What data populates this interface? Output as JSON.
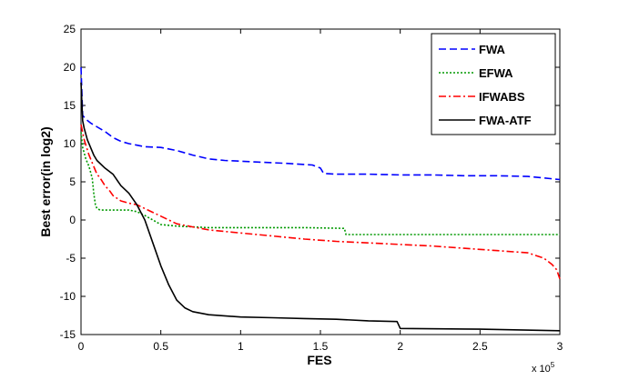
{
  "chart_data": {
    "type": "line",
    "xlabel": "FES",
    "ylabel": "Best error(in log2)",
    "x_multiplier_label": "x 10",
    "x_multiplier_exponent": "5",
    "xlim": [
      0,
      3
    ],
    "ylim": [
      -15,
      25
    ],
    "xticks": [
      0,
      0.5,
      1,
      1.5,
      2,
      2.5,
      3
    ],
    "xtick_labels": [
      "0",
      "0.5",
      "1",
      "1.5",
      "2",
      "2.5",
      "3"
    ],
    "yticks": [
      -15,
      -10,
      -5,
      0,
      5,
      10,
      15,
      20,
      25
    ],
    "ytick_labels": [
      "-15",
      "-10",
      "-5",
      "0",
      "5",
      "10",
      "15",
      "20",
      "25"
    ],
    "grid": false,
    "legend_position": "top-right",
    "series": [
      {
        "name": "FWA",
        "color": "#0000ff",
        "dash": "dashed",
        "x": [
          0,
          0.01,
          0.03,
          0.06,
          0.1,
          0.15,
          0.2,
          0.25,
          0.3,
          0.35,
          0.4,
          0.5,
          0.6,
          0.7,
          0.8,
          0.9,
          1.0,
          1.1,
          1.2,
          1.3,
          1.45,
          1.5,
          1.52,
          1.6,
          1.8,
          2.0,
          2.2,
          2.4,
          2.6,
          2.8,
          2.9,
          3.0
        ],
        "y": [
          20,
          13.7,
          13.2,
          12.7,
          12.2,
          11.6,
          10.8,
          10.3,
          10.0,
          9.8,
          9.6,
          9.5,
          9.1,
          8.5,
          8.0,
          7.8,
          7.7,
          7.6,
          7.5,
          7.4,
          7.2,
          6.8,
          6.1,
          6.0,
          6.0,
          5.9,
          5.9,
          5.8,
          5.8,
          5.7,
          5.5,
          5.3
        ]
      },
      {
        "name": "EFWA",
        "color": "#009900",
        "dash": "dotted",
        "x": [
          0,
          0.01,
          0.03,
          0.05,
          0.07,
          0.08,
          0.09,
          0.1,
          0.12,
          0.15,
          0.2,
          0.25,
          0.3,
          0.35,
          0.4,
          0.45,
          0.5,
          0.6,
          0.8,
          1.0,
          1.2,
          1.4,
          1.65,
          1.66,
          1.8,
          2.0,
          2.5,
          3.0
        ],
        "y": [
          11.5,
          9.5,
          8.0,
          7.0,
          5.5,
          3.5,
          2.0,
          1.5,
          1.3,
          1.3,
          1.3,
          1.3,
          1.3,
          1.1,
          0.6,
          0.0,
          -0.6,
          -0.8,
          -1.0,
          -1.0,
          -1.0,
          -1.0,
          -1.1,
          -1.9,
          -1.9,
          -1.9,
          -1.9,
          -1.9
        ]
      },
      {
        "name": "IFWABS",
        "color": "#ff0000",
        "dash": "dashdot",
        "x": [
          0,
          0.02,
          0.05,
          0.08,
          0.1,
          0.12,
          0.15,
          0.18,
          0.2,
          0.25,
          0.3,
          0.35,
          0.4,
          0.45,
          0.5,
          0.55,
          0.6,
          0.7,
          0.8,
          1.0,
          1.2,
          1.4,
          1.6,
          1.8,
          2.0,
          2.2,
          2.4,
          2.6,
          2.8,
          2.9,
          2.95,
          2.98,
          3.0
        ],
        "y": [
          12.5,
          10.5,
          8.5,
          7.0,
          6.0,
          5.5,
          4.5,
          3.8,
          3.2,
          2.5,
          2.2,
          2.0,
          1.5,
          1.0,
          0.5,
          0.0,
          -0.5,
          -0.9,
          -1.3,
          -1.7,
          -2.1,
          -2.5,
          -2.8,
          -3.0,
          -3.2,
          -3.4,
          -3.7,
          -4.0,
          -4.3,
          -5.0,
          -5.8,
          -6.5,
          -7.7
        ]
      },
      {
        "name": "FWA-ATF",
        "color": "#000000",
        "dash": "solid",
        "x": [
          0,
          0.01,
          0.02,
          0.04,
          0.06,
          0.08,
          0.1,
          0.15,
          0.2,
          0.25,
          0.3,
          0.35,
          0.4,
          0.45,
          0.5,
          0.55,
          0.6,
          0.65,
          0.7,
          0.8,
          1.0,
          1.2,
          1.4,
          1.6,
          1.8,
          1.98,
          2.0,
          2.5,
          3.0
        ],
        "y": [
          18.0,
          13.0,
          12.0,
          10.5,
          9.5,
          8.5,
          7.8,
          6.8,
          6.0,
          4.5,
          3.5,
          2.0,
          0.0,
          -3.0,
          -6.0,
          -8.5,
          -10.5,
          -11.5,
          -12.0,
          -12.4,
          -12.7,
          -12.8,
          -12.9,
          -13.0,
          -13.2,
          -13.3,
          -14.2,
          -14.3,
          -14.5
        ]
      }
    ]
  }
}
